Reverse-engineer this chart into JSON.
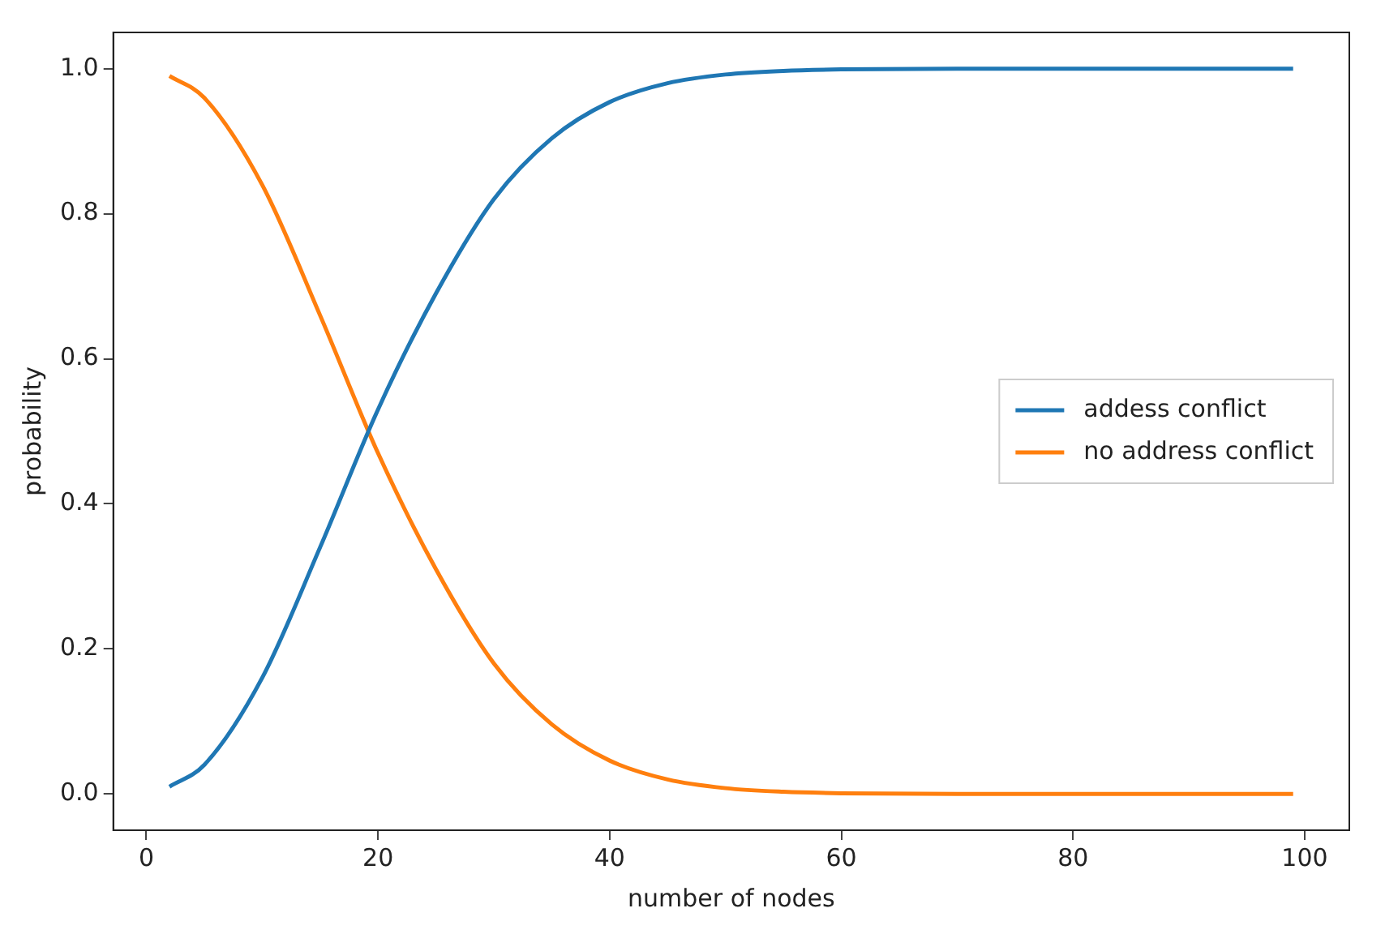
{
  "chart_data": {
    "type": "line",
    "xlabel": "number of nodes",
    "ylabel": "probability",
    "x": [
      2,
      5,
      10,
      15,
      20,
      25,
      30,
      35,
      40,
      45,
      50,
      55,
      60,
      70,
      80,
      99
    ],
    "series": [
      {
        "name": "addess conflict",
        "color": "#1f77b4",
        "values": [
          0.01,
          0.04,
          0.16,
          0.34,
          0.53,
          0.69,
          0.82,
          0.904,
          0.954,
          0.98,
          0.992,
          0.997,
          0.999,
          1.0,
          1.0,
          1.0
        ]
      },
      {
        "name": "no address conflict",
        "color": "#ff7f0e",
        "values": [
          0.99,
          0.96,
          0.84,
          0.66,
          0.47,
          0.31,
          0.18,
          0.096,
          0.046,
          0.02,
          0.008,
          0.003,
          0.001,
          0.0,
          0.0,
          0.0
        ]
      }
    ],
    "xlim": [
      -2.85,
      103.85
    ],
    "ylim": [
      -0.05,
      1.05
    ],
    "xticks": [
      0,
      20,
      40,
      60,
      80,
      100
    ],
    "yticks": [
      {
        "value": 0,
        "label": "0.0"
      },
      {
        "value": 0.2,
        "label": "0.2"
      },
      {
        "value": 0.4,
        "label": "0.4"
      },
      {
        "value": 0.6,
        "label": "0.6"
      },
      {
        "value": 0.8,
        "label": "0.8"
      },
      {
        "value": 1,
        "label": "1.0"
      }
    ],
    "legend": "right",
    "grid": false,
    "marker": "none",
    "line_style": "solid"
  }
}
